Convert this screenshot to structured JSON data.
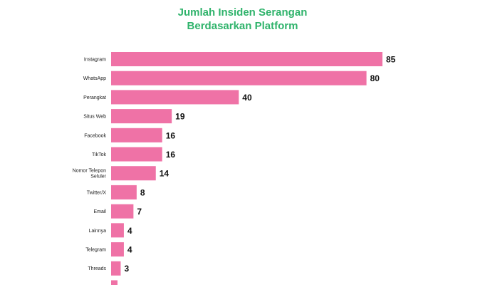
{
  "chart_data": {
    "type": "bar",
    "orientation": "horizontal",
    "title_line1": "Jumlah Insiden Serangan",
    "title_line2": "Berdasarkan Platform",
    "categories": [
      [
        "Instagram"
      ],
      [
        "WhatsApp"
      ],
      [
        "Perangkat"
      ],
      [
        "Situs Web"
      ],
      [
        "Facebook"
      ],
      [
        "TikTok"
      ],
      [
        "Nomor Telepon",
        "Seluler"
      ],
      [
        "Twitter/X"
      ],
      [
        "Email"
      ],
      [
        "Lainnya"
      ],
      [
        "Telegram"
      ],
      [
        "Threads"
      ],
      [
        ""
      ]
    ],
    "values": [
      85,
      80,
      40,
      19,
      16,
      16,
      14,
      8,
      7,
      4,
      4,
      3,
      2
    ],
    "value_labels": [
      "85",
      "80",
      "40",
      "19",
      "16",
      "16",
      "14",
      "8",
      "7",
      "4",
      "4",
      "3",
      ""
    ],
    "xlim": [
      0,
      85
    ],
    "bar_color": "#ef72a6",
    "title_color": "#2fb36b",
    "grid": false,
    "legend": "none"
  }
}
